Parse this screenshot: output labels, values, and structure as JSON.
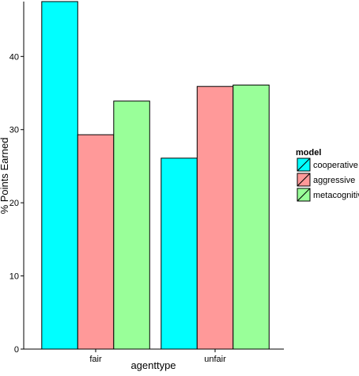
{
  "chart_data": {
    "type": "bar",
    "categories": [
      "fair",
      "unfair"
    ],
    "series": [
      {
        "name": "cooperative",
        "values": [
          47.5,
          26.1
        ],
        "color": "#00FFFF"
      },
      {
        "name": "aggressive",
        "values": [
          29.3,
          35.9
        ],
        "color": "#FF9999"
      },
      {
        "name": "metacognitive",
        "values": [
          33.9,
          36.1
        ],
        "color": "#99FF99"
      }
    ],
    "xlabel": "agenttype",
    "ylabel": "% Points Earned",
    "ylim": [
      0,
      47.5
    ],
    "yticks": [
      "0",
      "10",
      "20",
      "30",
      "40"
    ],
    "legend": {
      "title": "model",
      "placement": "right"
    },
    "grid": false
  }
}
